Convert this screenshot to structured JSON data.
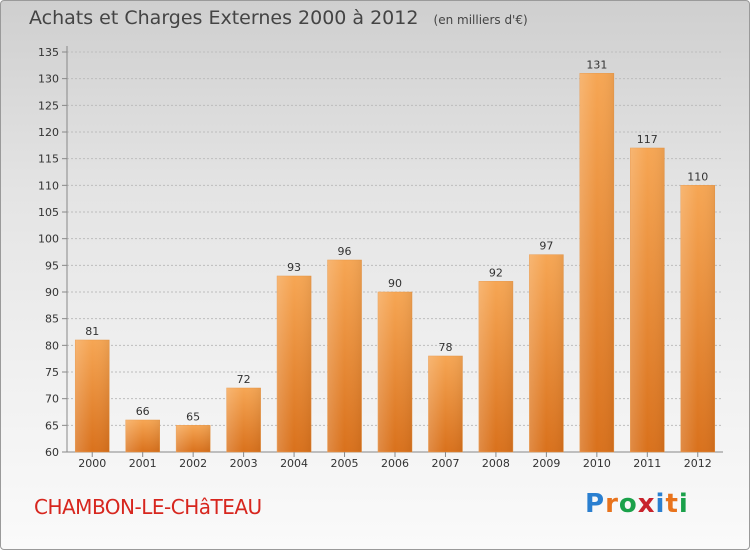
{
  "title": "Achats et Charges Externes 2000 à 2012",
  "subtitle": "(en milliers d'€)",
  "place_name": "CHAMBON-LE-CHâTEAU",
  "logo": {
    "text": "Proxiti",
    "letters": [
      "P",
      "r",
      "o",
      "x",
      "i",
      "t",
      "i"
    ],
    "colors": [
      "#2a7fd0",
      "#e8731c",
      "#1aa14a",
      "#c8232c",
      "#2a7fd0",
      "#e8731c",
      "#1aa14a"
    ]
  },
  "colors": {
    "bar_top": "#f6a654",
    "bar_bottom": "#d9711c",
    "place": "#d7261e"
  },
  "chart_data": {
    "type": "bar",
    "categories": [
      "2000",
      "2001",
      "2002",
      "2003",
      "2004",
      "2005",
      "2006",
      "2007",
      "2008",
      "2009",
      "2010",
      "2011",
      "2012"
    ],
    "values": [
      81,
      66,
      65,
      72,
      93,
      96,
      90,
      78,
      92,
      97,
      131,
      117,
      110
    ],
    "ylim": [
      60,
      135
    ],
    "yticks": [
      60,
      65,
      70,
      75,
      80,
      85,
      90,
      95,
      100,
      105,
      110,
      115,
      120,
      125,
      130,
      135
    ],
    "grid": true,
    "legend": "none"
  }
}
